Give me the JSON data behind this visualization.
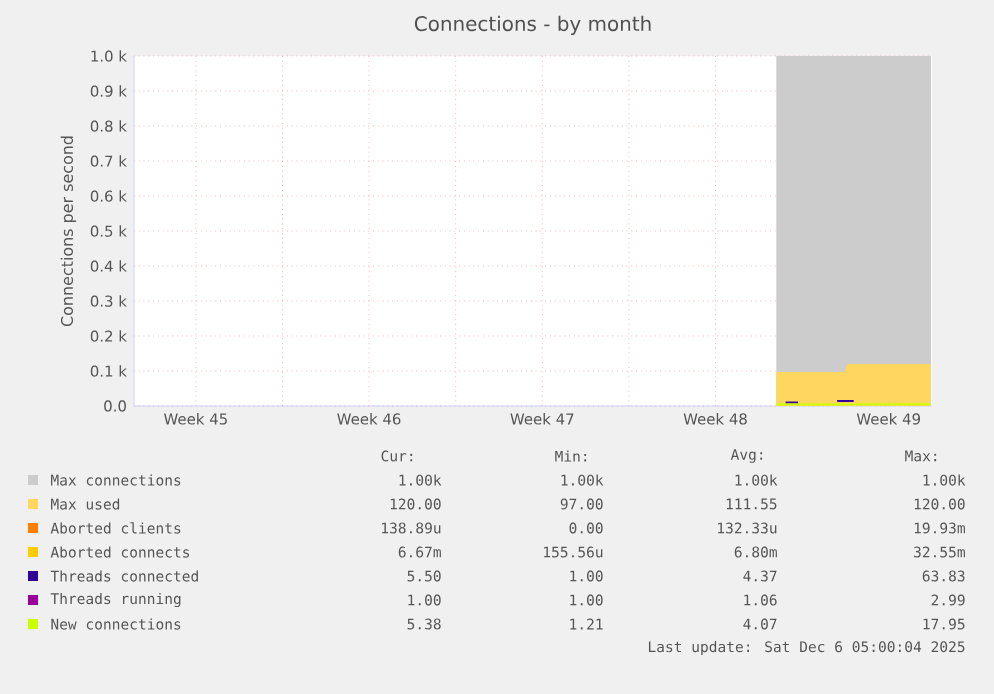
{
  "chart_data": {
    "type": "area",
    "title": "Connections - by month",
    "ylabel": "Connections per second",
    "xlim": [
      "2025-11-04T00:00",
      "2025-12-06T06:00"
    ],
    "xticks": [
      {
        "value": "2025-11-06T12:00",
        "label": "Week 45"
      },
      {
        "value": "2025-11-10",
        "label": null
      },
      {
        "value": "2025-11-13T12:00",
        "label": "Week 46"
      },
      {
        "value": "2025-11-17",
        "label": null
      },
      {
        "value": "2025-11-20T12:00",
        "label": "Week 47"
      },
      {
        "value": "2025-11-24",
        "label": null
      },
      {
        "value": "2025-11-27T12:00",
        "label": "Week 48"
      },
      {
        "value": "2025-12-01",
        "label": null
      },
      {
        "value": "2025-12-04T12:00",
        "label": "Week 49"
      }
    ],
    "ylim": [
      0,
      1000
    ],
    "yticks": [
      {
        "value": 0,
        "label": "0.0"
      },
      {
        "value": 100,
        "label": "0.1 k"
      },
      {
        "value": 200,
        "label": "0.2 k"
      },
      {
        "value": 300,
        "label": "0.3 k"
      },
      {
        "value": 400,
        "label": "0.4 k"
      },
      {
        "value": 500,
        "label": "0.5 k"
      },
      {
        "value": 600,
        "label": "0.6 k"
      },
      {
        "value": 700,
        "label": "0.7 k"
      },
      {
        "value": 800,
        "label": "0.8 k"
      },
      {
        "value": 900,
        "label": "0.9 k"
      },
      {
        "value": 1000,
        "label": "1.0 k"
      }
    ],
    "grid": true,
    "legend": "bottom",
    "series": [
      {
        "name": "Max connections",
        "color": "#cccccc",
        "x": [
          "2025-11-29T23:00",
          "2025-12-06T05:00"
        ],
        "values": [
          1000,
          1000
        ]
      },
      {
        "name": "Max used",
        "color": "#ffd660",
        "x": [
          "2025-11-29T23:00",
          "2025-12-02T17:00",
          "2025-12-02T20:00",
          "2025-12-06T05:00"
        ],
        "values": [
          97,
          97,
          120,
          120
        ]
      },
      {
        "name": "Aborted clients",
        "type": "line",
        "color": "#ff7f00",
        "values": [
          null
        ]
      },
      {
        "name": "Aborted connects",
        "type": "line",
        "color": "#ffcc00",
        "values": [
          null
        ]
      },
      {
        "name": "Threads connected",
        "type": "line",
        "color": "#330099",
        "x": [
          "2025-11-30T08:00",
          "2025-11-30T20:00",
          "2025-12-01T12:00",
          "2025-12-02T10:00",
          "2025-12-03T02:00"
        ],
        "values": [
          10,
          10,
          null,
          14,
          14
        ]
      },
      {
        "name": "Threads running",
        "type": "line",
        "color": "#990099",
        "values": [
          null
        ]
      },
      {
        "name": "New connections",
        "type": "line",
        "color": "#ccff00",
        "x": [
          "2025-11-29T23:00",
          "2025-12-06T05:00"
        ],
        "values": [
          4,
          5
        ]
      }
    ],
    "annotations": [
      "Cur:",
      "Min:",
      "Avg:",
      "Max:",
      "1.00k",
      "1.00k",
      "1.00k",
      "1.00k",
      "120.00",
      "97.00",
      "111.55",
      "120.00",
      "138.89u",
      "0.00",
      "132.33u",
      "19.93m",
      "6.67m",
      "155.56u",
      "6.80m",
      "32.55m",
      "5.50",
      "1.00",
      "4.37",
      "63.83",
      "1.00",
      "1.00",
      "1.06",
      "2.99",
      "5.38",
      "1.21",
      "4.07",
      "17.95",
      "Last update: Sat Dec  6 05:00:04 2025"
    ]
  }
}
